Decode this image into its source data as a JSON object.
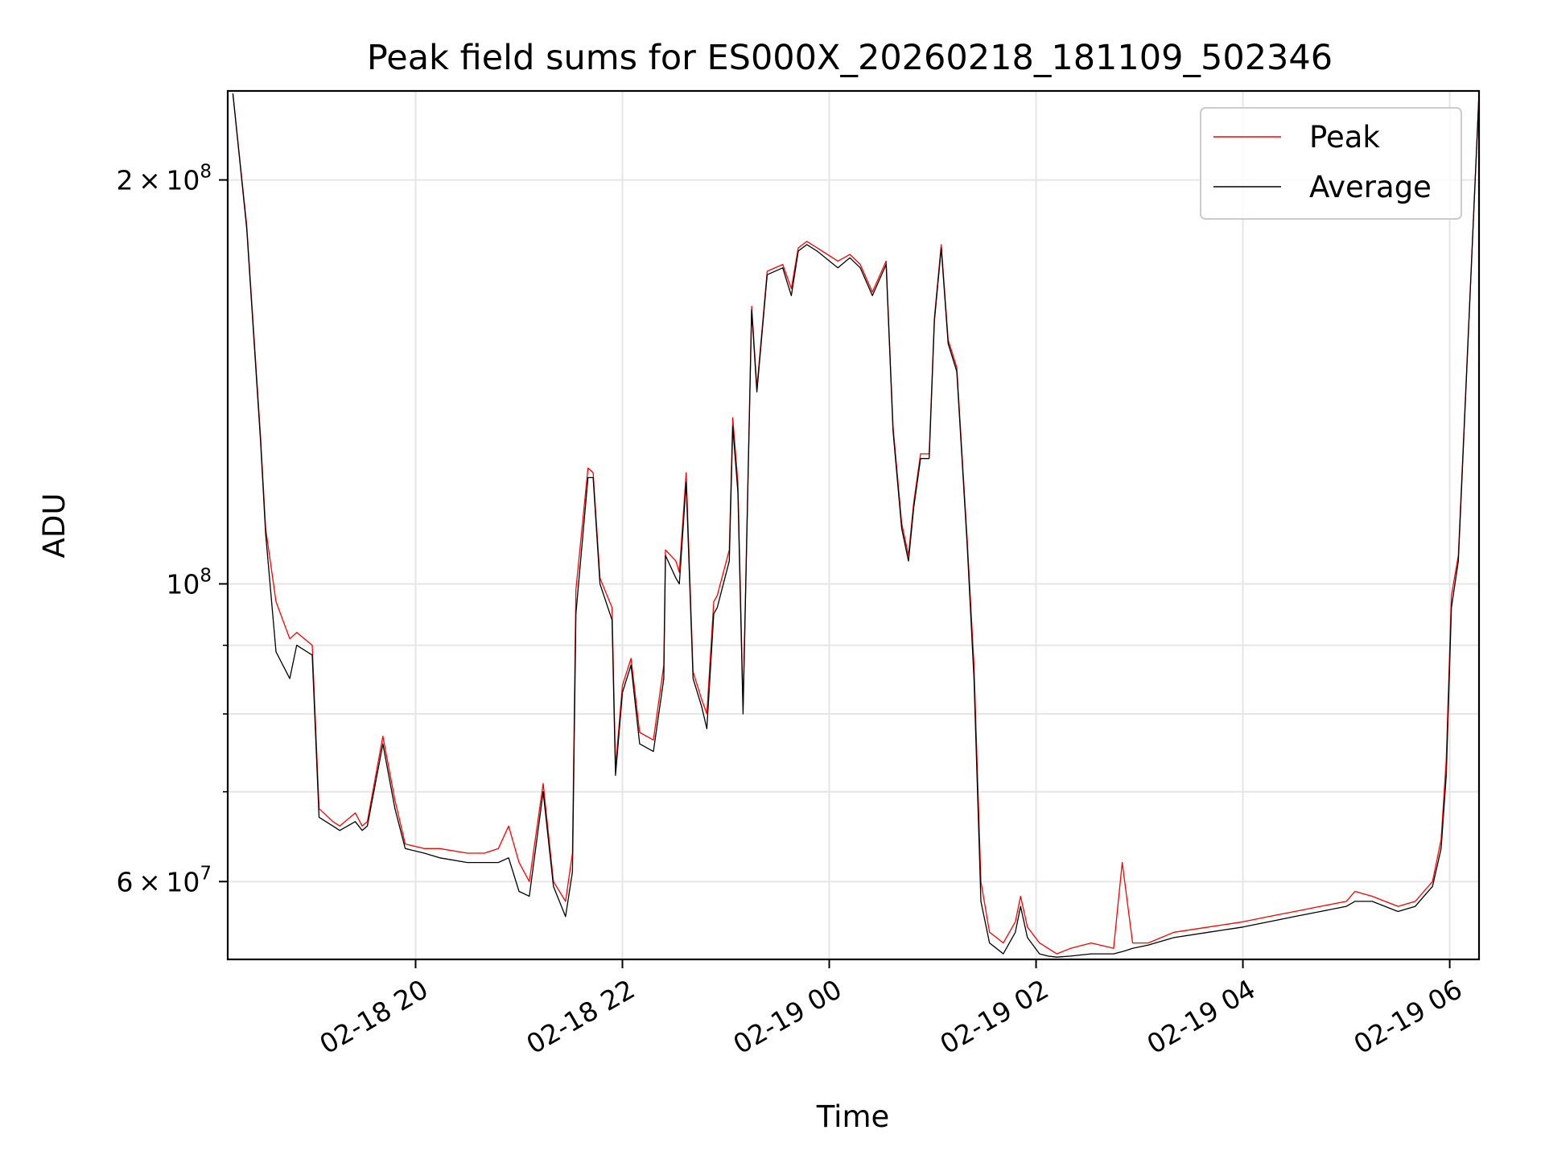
{
  "chart_data": {
    "type": "line",
    "title": "Peak field sums for ES000X_20260218_181109_502346",
    "xlabel": "Time",
    "ylabel": "ADU",
    "yscale": "log",
    "xlim": [
      "2026-02-18 18:11",
      "2026-02-19 06:17"
    ],
    "ylim": [
      52500000,
      233000000
    ],
    "grid": true,
    "legend_position": "top-right",
    "x_ticks": [
      {
        "value": "2026-02-18 20:00",
        "label": "02-18 20"
      },
      {
        "value": "2026-02-18 22:00",
        "label": "02-18 22"
      },
      {
        "value": "2026-02-19 00:00",
        "label": "02-19 00"
      },
      {
        "value": "2026-02-19 02:00",
        "label": "02-19 02"
      },
      {
        "value": "2026-02-19 04:00",
        "label": "02-19 04"
      },
      {
        "value": "2026-02-19 06:00",
        "label": "02-19 06"
      }
    ],
    "y_ticks": [
      {
        "value": 60000000,
        "base": "6",
        "exp": "7"
      },
      {
        "value": 100000000,
        "base": "",
        "exp": "8"
      },
      {
        "value": 200000000,
        "base": "2",
        "exp": "8"
      }
    ],
    "y_minor_ticks": [
      70000000,
      80000000,
      90000000
    ],
    "series": [
      {
        "name": "Peak",
        "color": "#ff0000",
        "x": [
          "2026-02-18 18:14",
          "2026-02-18 18:22",
          "2026-02-18 18:30",
          "2026-02-18 18:33",
          "2026-02-18 18:39",
          "2026-02-18 18:47",
          "2026-02-18 18:51",
          "2026-02-18 19:00",
          "2026-02-18 19:04",
          "2026-02-18 19:12",
          "2026-02-18 19:16",
          "2026-02-18 19:25",
          "2026-02-18 19:29",
          "2026-02-18 19:32",
          "2026-02-18 19:41",
          "2026-02-18 19:48",
          "2026-02-18 19:54",
          "2026-02-18 20:05",
          "2026-02-18 20:14",
          "2026-02-18 20:30",
          "2026-02-18 20:40",
          "2026-02-18 20:48",
          "2026-02-18 20:54",
          "2026-02-18 21:00",
          "2026-02-18 21:06",
          "2026-02-18 21:14",
          "2026-02-18 21:20",
          "2026-02-18 21:27",
          "2026-02-18 21:31",
          "2026-02-18 21:33",
          "2026-02-18 21:40",
          "2026-02-18 21:43",
          "2026-02-18 21:47",
          "2026-02-18 21:54",
          "2026-02-18 21:56",
          "2026-02-18 22:00",
          "2026-02-18 22:05",
          "2026-02-18 22:10",
          "2026-02-18 22:18",
          "2026-02-18 22:24",
          "2026-02-18 22:25",
          "2026-02-18 22:31",
          "2026-02-18 22:33",
          "2026-02-18 22:37",
          "2026-02-18 22:41",
          "2026-02-18 22:46",
          "2026-02-18 22:49",
          "2026-02-18 22:53",
          "2026-02-18 22:55",
          "2026-02-18 23:02",
          "2026-02-18 23:04",
          "2026-02-18 23:07",
          "2026-02-18 23:10",
          "2026-02-18 23:15",
          "2026-02-18 23:18",
          "2026-02-18 23:24",
          "2026-02-18 23:33",
          "2026-02-18 23:38",
          "2026-02-18 23:42",
          "2026-02-18 23:47",
          "2026-02-18 23:53",
          "2026-02-19 00:05",
          "2026-02-19 00:12",
          "2026-02-19 00:18",
          "2026-02-19 00:25",
          "2026-02-19 00:33",
          "2026-02-19 00:37",
          "2026-02-19 00:42",
          "2026-02-19 00:46",
          "2026-02-19 00:49",
          "2026-02-19 00:53",
          "2026-02-19 00:58",
          "2026-02-19 01:01",
          "2026-02-19 01:05",
          "2026-02-19 01:09",
          "2026-02-19 01:14",
          "2026-02-19 01:20",
          "2026-02-19 01:24",
          "2026-02-19 01:28",
          "2026-02-19 01:33",
          "2026-02-19 01:37",
          "2026-02-19 01:41",
          "2026-02-19 01:48",
          "2026-02-19 01:51",
          "2026-02-19 01:55",
          "2026-02-19 02:02",
          "2026-02-19 02:07",
          "2026-02-19 02:12",
          "2026-02-19 02:20",
          "2026-02-19 02:32",
          "2026-02-19 02:45",
          "2026-02-19 02:50",
          "2026-02-19 02:56",
          "2026-02-19 03:05",
          "2026-02-19 03:20",
          "2026-02-19 03:40",
          "2026-02-19 04:00",
          "2026-02-19 04:15",
          "2026-02-19 04:30",
          "2026-02-19 04:45",
          "2026-02-19 05:00",
          "2026-02-19 05:05",
          "2026-02-19 05:15",
          "2026-02-19 05:30",
          "2026-02-19 05:40",
          "2026-02-19 05:45",
          "2026-02-19 05:50",
          "2026-02-19 05:55",
          "2026-02-19 05:58",
          "2026-02-19 06:01",
          "2026-02-19 06:05",
          "2026-02-19 06:17"
        ],
        "values": [
          232000000,
          185000000,
          129000000,
          110000000,
          97000000,
          91000000,
          92000000,
          90000000,
          68000000,
          66500000,
          66000000,
          67500000,
          66000000,
          66500000,
          77000000,
          69000000,
          64000000,
          63500000,
          63500000,
          63000000,
          63000000,
          63500000,
          66000000,
          62000000,
          60000000,
          71000000,
          60000000,
          58000000,
          63000000,
          99000000,
          122000000,
          121000000,
          101000000,
          96000000,
          73000000,
          84000000,
          88000000,
          77500000,
          76500000,
          87000000,
          106000000,
          104000000,
          102000000,
          121000000,
          86000000,
          82000000,
          80000000,
          97000000,
          98000000,
          106000000,
          133000000,
          119000000,
          81000000,
          161000000,
          140000000,
          171000000,
          173000000,
          166000000,
          178000000,
          180000000,
          178000000,
          174000000,
          176000000,
          173000000,
          165000000,
          174000000,
          131000000,
          111000000,
          105000000,
          115000000,
          125000000,
          125000000,
          158000000,
          179000000,
          152000000,
          145000000,
          108000000,
          87000000,
          60000000,
          55000000,
          54500000,
          54000000,
          56000000,
          58500000,
          55500000,
          54000000,
          53500000,
          53000000,
          53500000,
          54000000,
          53500000,
          62000000,
          54000000,
          54000000,
          55000000,
          55500000,
          56000000,
          56500000,
          57000000,
          57500000,
          58000000,
          59000000,
          58500000,
          57500000,
          58000000,
          59000000,
          60000000,
          64500000,
          74000000,
          98000000,
          105000000,
          232000000
        ]
      },
      {
        "name": "Average",
        "color": "#000000",
        "x": [
          "2026-02-18 18:14",
          "2026-02-18 18:22",
          "2026-02-18 18:30",
          "2026-02-18 18:33",
          "2026-02-18 18:39",
          "2026-02-18 18:47",
          "2026-02-18 18:51",
          "2026-02-18 19:00",
          "2026-02-18 19:04",
          "2026-02-18 19:12",
          "2026-02-18 19:16",
          "2026-02-18 19:25",
          "2026-02-18 19:29",
          "2026-02-18 19:32",
          "2026-02-18 19:41",
          "2026-02-18 19:48",
          "2026-02-18 19:54",
          "2026-02-18 20:05",
          "2026-02-18 20:14",
          "2026-02-18 20:30",
          "2026-02-18 20:40",
          "2026-02-18 20:48",
          "2026-02-18 20:54",
          "2026-02-18 21:00",
          "2026-02-18 21:06",
          "2026-02-18 21:14",
          "2026-02-18 21:20",
          "2026-02-18 21:27",
          "2026-02-18 21:31",
          "2026-02-18 21:33",
          "2026-02-18 21:40",
          "2026-02-18 21:43",
          "2026-02-18 21:47",
          "2026-02-18 21:54",
          "2026-02-18 21:56",
          "2026-02-18 22:00",
          "2026-02-18 22:05",
          "2026-02-18 22:10",
          "2026-02-18 22:18",
          "2026-02-18 22:24",
          "2026-02-18 22:25",
          "2026-02-18 22:31",
          "2026-02-18 22:33",
          "2026-02-18 22:37",
          "2026-02-18 22:41",
          "2026-02-18 22:46",
          "2026-02-18 22:49",
          "2026-02-18 22:53",
          "2026-02-18 22:55",
          "2026-02-18 23:02",
          "2026-02-18 23:04",
          "2026-02-18 23:07",
          "2026-02-18 23:10",
          "2026-02-18 23:15",
          "2026-02-18 23:18",
          "2026-02-18 23:24",
          "2026-02-18 23:33",
          "2026-02-18 23:38",
          "2026-02-18 23:42",
          "2026-02-18 23:47",
          "2026-02-18 23:53",
          "2026-02-19 00:05",
          "2026-02-19 00:12",
          "2026-02-19 00:18",
          "2026-02-19 00:25",
          "2026-02-19 00:33",
          "2026-02-19 00:37",
          "2026-02-19 00:42",
          "2026-02-19 00:46",
          "2026-02-19 00:49",
          "2026-02-19 00:53",
          "2026-02-19 00:58",
          "2026-02-19 01:01",
          "2026-02-19 01:05",
          "2026-02-19 01:09",
          "2026-02-19 01:14",
          "2026-02-19 01:20",
          "2026-02-19 01:24",
          "2026-02-19 01:28",
          "2026-02-19 01:33",
          "2026-02-19 01:37",
          "2026-02-19 01:41",
          "2026-02-19 01:48",
          "2026-02-19 01:51",
          "2026-02-19 01:55",
          "2026-02-19 02:02",
          "2026-02-19 02:07",
          "2026-02-19 02:12",
          "2026-02-19 02:20",
          "2026-02-19 02:32",
          "2026-02-19 02:45",
          "2026-02-19 02:50",
          "2026-02-19 02:56",
          "2026-02-19 03:05",
          "2026-02-19 03:20",
          "2026-02-19 03:40",
          "2026-02-19 04:00",
          "2026-02-19 04:15",
          "2026-02-19 04:30",
          "2026-02-19 04:45",
          "2026-02-19 05:00",
          "2026-02-19 05:05",
          "2026-02-19 05:15",
          "2026-02-19 05:30",
          "2026-02-19 05:40",
          "2026-02-19 05:45",
          "2026-02-19 05:50",
          "2026-02-19 05:55",
          "2026-02-19 05:58",
          "2026-02-19 06:01",
          "2026-02-19 06:05",
          "2026-02-19 06:17"
        ],
        "values": [
          232000000,
          184000000,
          128000000,
          109000000,
          89000000,
          85000000,
          90000000,
          88500000,
          67000000,
          66000000,
          65500000,
          66500000,
          65500000,
          66000000,
          76000000,
          68000000,
          63500000,
          63000000,
          62500000,
          62000000,
          62000000,
          62000000,
          62500000,
          59000000,
          58500000,
          70000000,
          59500000,
          56500000,
          61000000,
          95000000,
          120000000,
          120000000,
          100000000,
          94000000,
          72000000,
          83000000,
          87000000,
          76000000,
          75000000,
          85000000,
          105000000,
          101000000,
          100000000,
          119000000,
          85000000,
          81000000,
          78000000,
          95000000,
          96000000,
          104000000,
          131000000,
          117000000,
          80000000,
          160000000,
          139000000,
          170000000,
          172000000,
          164000000,
          177000000,
          179000000,
          177000000,
          172000000,
          175000000,
          172000000,
          164000000,
          173000000,
          130000000,
          110000000,
          104000000,
          114000000,
          124000000,
          124000000,
          157000000,
          178000000,
          151000000,
          144000000,
          107000000,
          85000000,
          58000000,
          54000000,
          53500000,
          53000000,
          55000000,
          57500000,
          54500000,
          53000000,
          52800000,
          52700000,
          52800000,
          53000000,
          53000000,
          53200000,
          53500000,
          53800000,
          54500000,
          55000000,
          55500000,
          56000000,
          56500000,
          57000000,
          57500000,
          58000000,
          58000000,
          57000000,
          57500000,
          58500000,
          59500000,
          63500000,
          72000000,
          96000000,
          104000000,
          232000000
        ]
      }
    ]
  }
}
